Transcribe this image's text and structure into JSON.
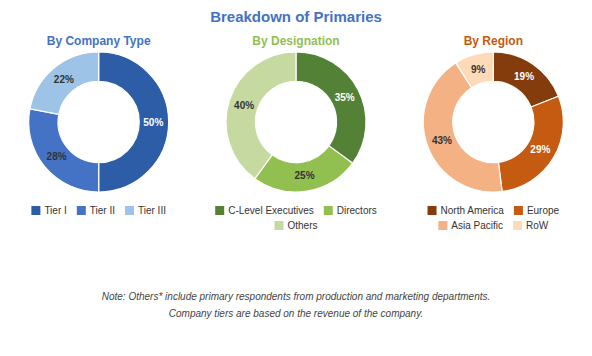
{
  "title": "Breakdown of Primaries",
  "annotations": [
    "Note: Others* include primary respondents from production and marketing departments.",
    "Company tiers are based on the revenue of the company."
  ],
  "chart_data": [
    {
      "type": "donut",
      "title": "By Company Type",
      "categories": [
        "Tier I",
        "Tier II",
        "Tier III"
      ],
      "values": [
        50,
        28,
        22
      ],
      "value_labels": [
        "50%",
        "28%",
        "22%"
      ],
      "colors": [
        "#2E5DA8",
        "#4472C4",
        "#9DC3E6"
      ],
      "data_labels": true,
      "legend": "bottom"
    },
    {
      "type": "donut",
      "title": "By Designation",
      "categories": [
        "C-Level Executives",
        "Directors",
        "Others"
      ],
      "values": [
        35,
        25,
        40
      ],
      "value_labels": [
        "35%",
        "25%",
        "40%"
      ],
      "colors": [
        "#538135",
        "#92C050",
        "#C6D9A0"
      ],
      "data_labels": true,
      "legend": "bottom"
    },
    {
      "type": "donut",
      "title": "By Region",
      "categories": [
        "North America",
        "Europe",
        "Asia Pacific",
        "RoW"
      ],
      "values": [
        19,
        29,
        43,
        9
      ],
      "value_labels": [
        "19%",
        "29%",
        "43%",
        "9%"
      ],
      "colors": [
        "#843C0C",
        "#C55A11",
        "#F4B183",
        "#FFDAB9"
      ],
      "data_labels": true,
      "legend": "bottom"
    }
  ]
}
